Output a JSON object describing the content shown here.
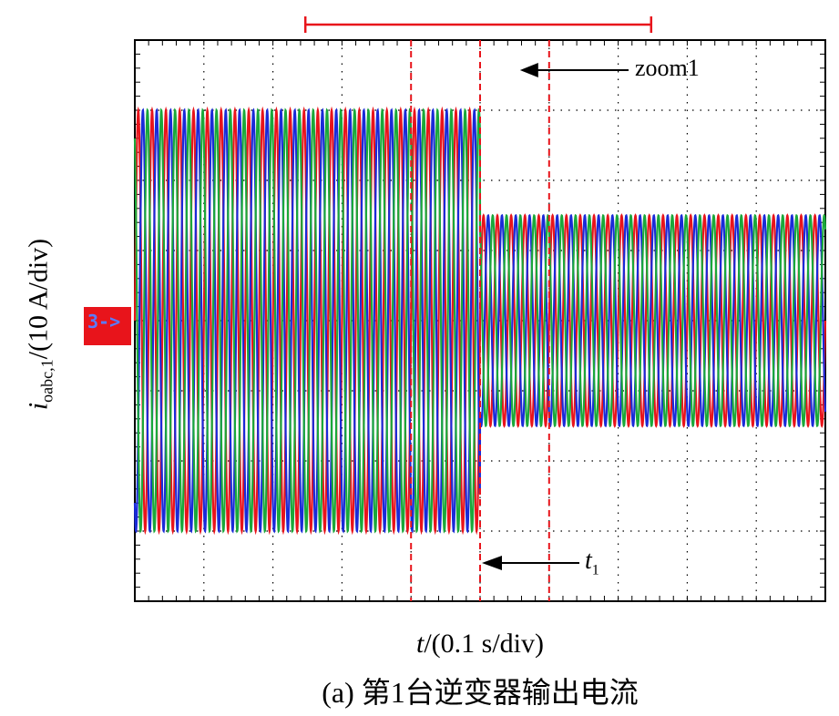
{
  "figure": {
    "caption": "(a) 第1台逆变器输出电流",
    "y_axis_label_main": "i",
    "y_axis_label_sub": "oabc,1",
    "y_axis_label_rest": "/(10 A/div)",
    "x_axis_label_var": "t",
    "x_axis_label_rest": "/(0.1 s/div)",
    "zoom_label": "zoom1",
    "event_label_main": "t",
    "event_label_sub": "1",
    "channel_marker": "3->"
  },
  "colors": {
    "phase_a": "#e8141b",
    "phase_b": "#1a2ad8",
    "phase_c": "#1aa83a",
    "marker": "#e8141b",
    "grid": "#000000"
  },
  "chart_data": {
    "type": "line",
    "xlabel": "t/(0.1 s/div)",
    "ylabel": "ioabc,1/(10 A/div)",
    "x_divisions": 10,
    "y_divisions": 8,
    "x_range_div": [
      0,
      10
    ],
    "y_range_div": [
      -4,
      4
    ],
    "grid": true,
    "event_time_div": 5,
    "zoom_window_div": [
      4,
      6
    ],
    "series": [
      {
        "phase_offset_deg": 0,
        "color": "phase_a"
      },
      {
        "phase_offset_deg": -120,
        "color": "phase_b"
      },
      {
        "phase_offset_deg": 120,
        "color": "phase_c"
      }
    ],
    "amplitude_before_div": 3.0,
    "amplitude_after_div": 1.5,
    "cycles_per_div": 5
  }
}
